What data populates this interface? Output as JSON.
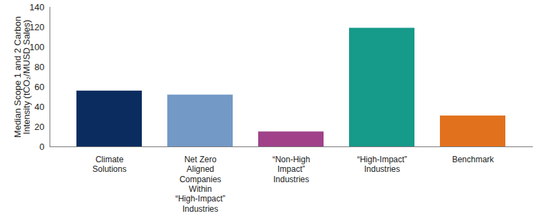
{
  "chart_data": {
    "type": "bar",
    "y_label": "Median Scope 1 and 2 Carbon\nIntensity (tCO₂/MUSD Sales)",
    "categories": [
      "Climate\nSolutions",
      "Net Zero\nAligned\nCompanies\nWithin\n“High-Impact”\nIndustries",
      "“Non-High\nImpact”\nIndustries",
      "“High-Impact”\nIndustries",
      "Benchmark"
    ],
    "values": [
      56,
      52,
      15,
      119,
      31
    ],
    "colors": [
      "#0b2c5f",
      "#7399c6",
      "#a0418a",
      "#169a8a",
      "#e2711d"
    ],
    "ylim": [
      0,
      140
    ],
    "yticks": [
      0,
      20,
      40,
      60,
      80,
      100,
      120,
      140
    ],
    "grid": false
  }
}
